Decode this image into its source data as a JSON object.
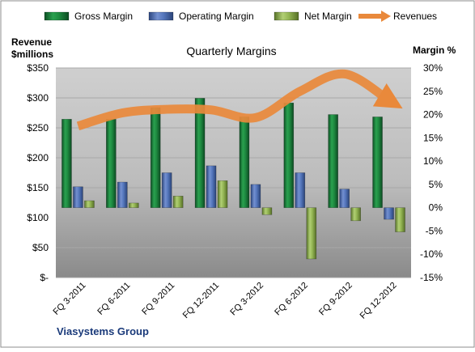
{
  "chart_data": {
    "type": "bar",
    "title": "Quarterly Margins",
    "left_axis_title_line1": "Revenue",
    "left_axis_title_line2": "$millions",
    "right_axis_title": "Margin %",
    "footer_label": "Viasystems Group",
    "categories": [
      "FQ 3-2011",
      "FQ 6-2011",
      "FQ 9-2011",
      "FQ 12-2011",
      "FQ 3-2012",
      "FQ 6-2012",
      "FQ 9-2012",
      "FQ 12-2012"
    ],
    "left_axis": {
      "min": 0,
      "max": 350,
      "step": 50,
      "tick_labels": [
        "$-",
        "$50",
        "$100",
        "$150",
        "$200",
        "$250",
        "$300",
        "$350"
      ]
    },
    "right_axis": {
      "min": -15,
      "max": 30,
      "step": 5,
      "tick_labels": [
        "-15%",
        "-10%",
        "-5%",
        "0%",
        "5%",
        "10%",
        "15%",
        "20%",
        "25%",
        "30%"
      ]
    },
    "legend": {
      "position": "top",
      "entries": [
        {
          "key": "gross",
          "label": "Gross Margin"
        },
        {
          "key": "operating",
          "label": "Operating Margin"
        },
        {
          "key": "net",
          "label": "Net Margin"
        },
        {
          "key": "revenues",
          "label": "Revenues"
        }
      ]
    },
    "series": [
      {
        "key": "gross",
        "name": "Gross Margin",
        "axis": "right",
        "color": "#1e7a3c",
        "values": [
          19.0,
          19.0,
          21.5,
          23.5,
          19.5,
          22.5,
          20.0,
          19.5
        ]
      },
      {
        "key": "operating",
        "name": "Operating Margin",
        "axis": "right",
        "color": "#4f6fb5",
        "values": [
          4.5,
          5.5,
          7.5,
          9.0,
          5.0,
          7.5,
          4.0,
          -2.5
        ]
      },
      {
        "key": "net",
        "name": "Net Margin",
        "axis": "right",
        "color": "#8db04b",
        "values": [
          1.5,
          1.0,
          2.5,
          5.8,
          -1.5,
          -11.0,
          -2.8,
          -5.2
        ]
      },
      {
        "key": "revenues",
        "name": "Revenues",
        "axis": "left",
        "color": "#e9893b",
        "values": [
          253,
          275,
          281,
          280,
          267,
          311,
          340,
          296
        ]
      }
    ],
    "grid": true
  }
}
